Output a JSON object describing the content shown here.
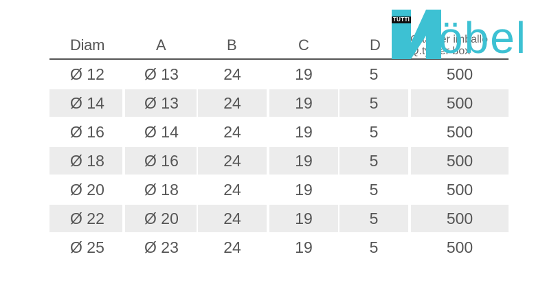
{
  "headers": [
    "Diam",
    "A",
    "B",
    "C",
    "D"
  ],
  "qty_header": {
    "line1": "Q.tà per imballo",
    "line2": "Q.ty per box"
  },
  "rows": [
    [
      "Ø 12",
      "Ø 13",
      "24",
      "19",
      "5",
      "500"
    ],
    [
      "Ø 14",
      "Ø 13",
      "24",
      "19",
      "5",
      "500"
    ],
    [
      "Ø 16",
      "Ø 14",
      "24",
      "19",
      "5",
      "500"
    ],
    [
      "Ø 18",
      "Ø 16",
      "24",
      "19",
      "5",
      "500"
    ],
    [
      "Ø 20",
      "Ø 18",
      "24",
      "19",
      "5",
      "500"
    ],
    [
      "Ø 22",
      "Ø 20",
      "24",
      "19",
      "5",
      "500"
    ],
    [
      "Ø 25",
      "Ø 23",
      "24",
      "19",
      "5",
      "500"
    ]
  ],
  "logo": {
    "tag": "TUTTI",
    "word": "öbel",
    "color": "#3dc1d3"
  }
}
